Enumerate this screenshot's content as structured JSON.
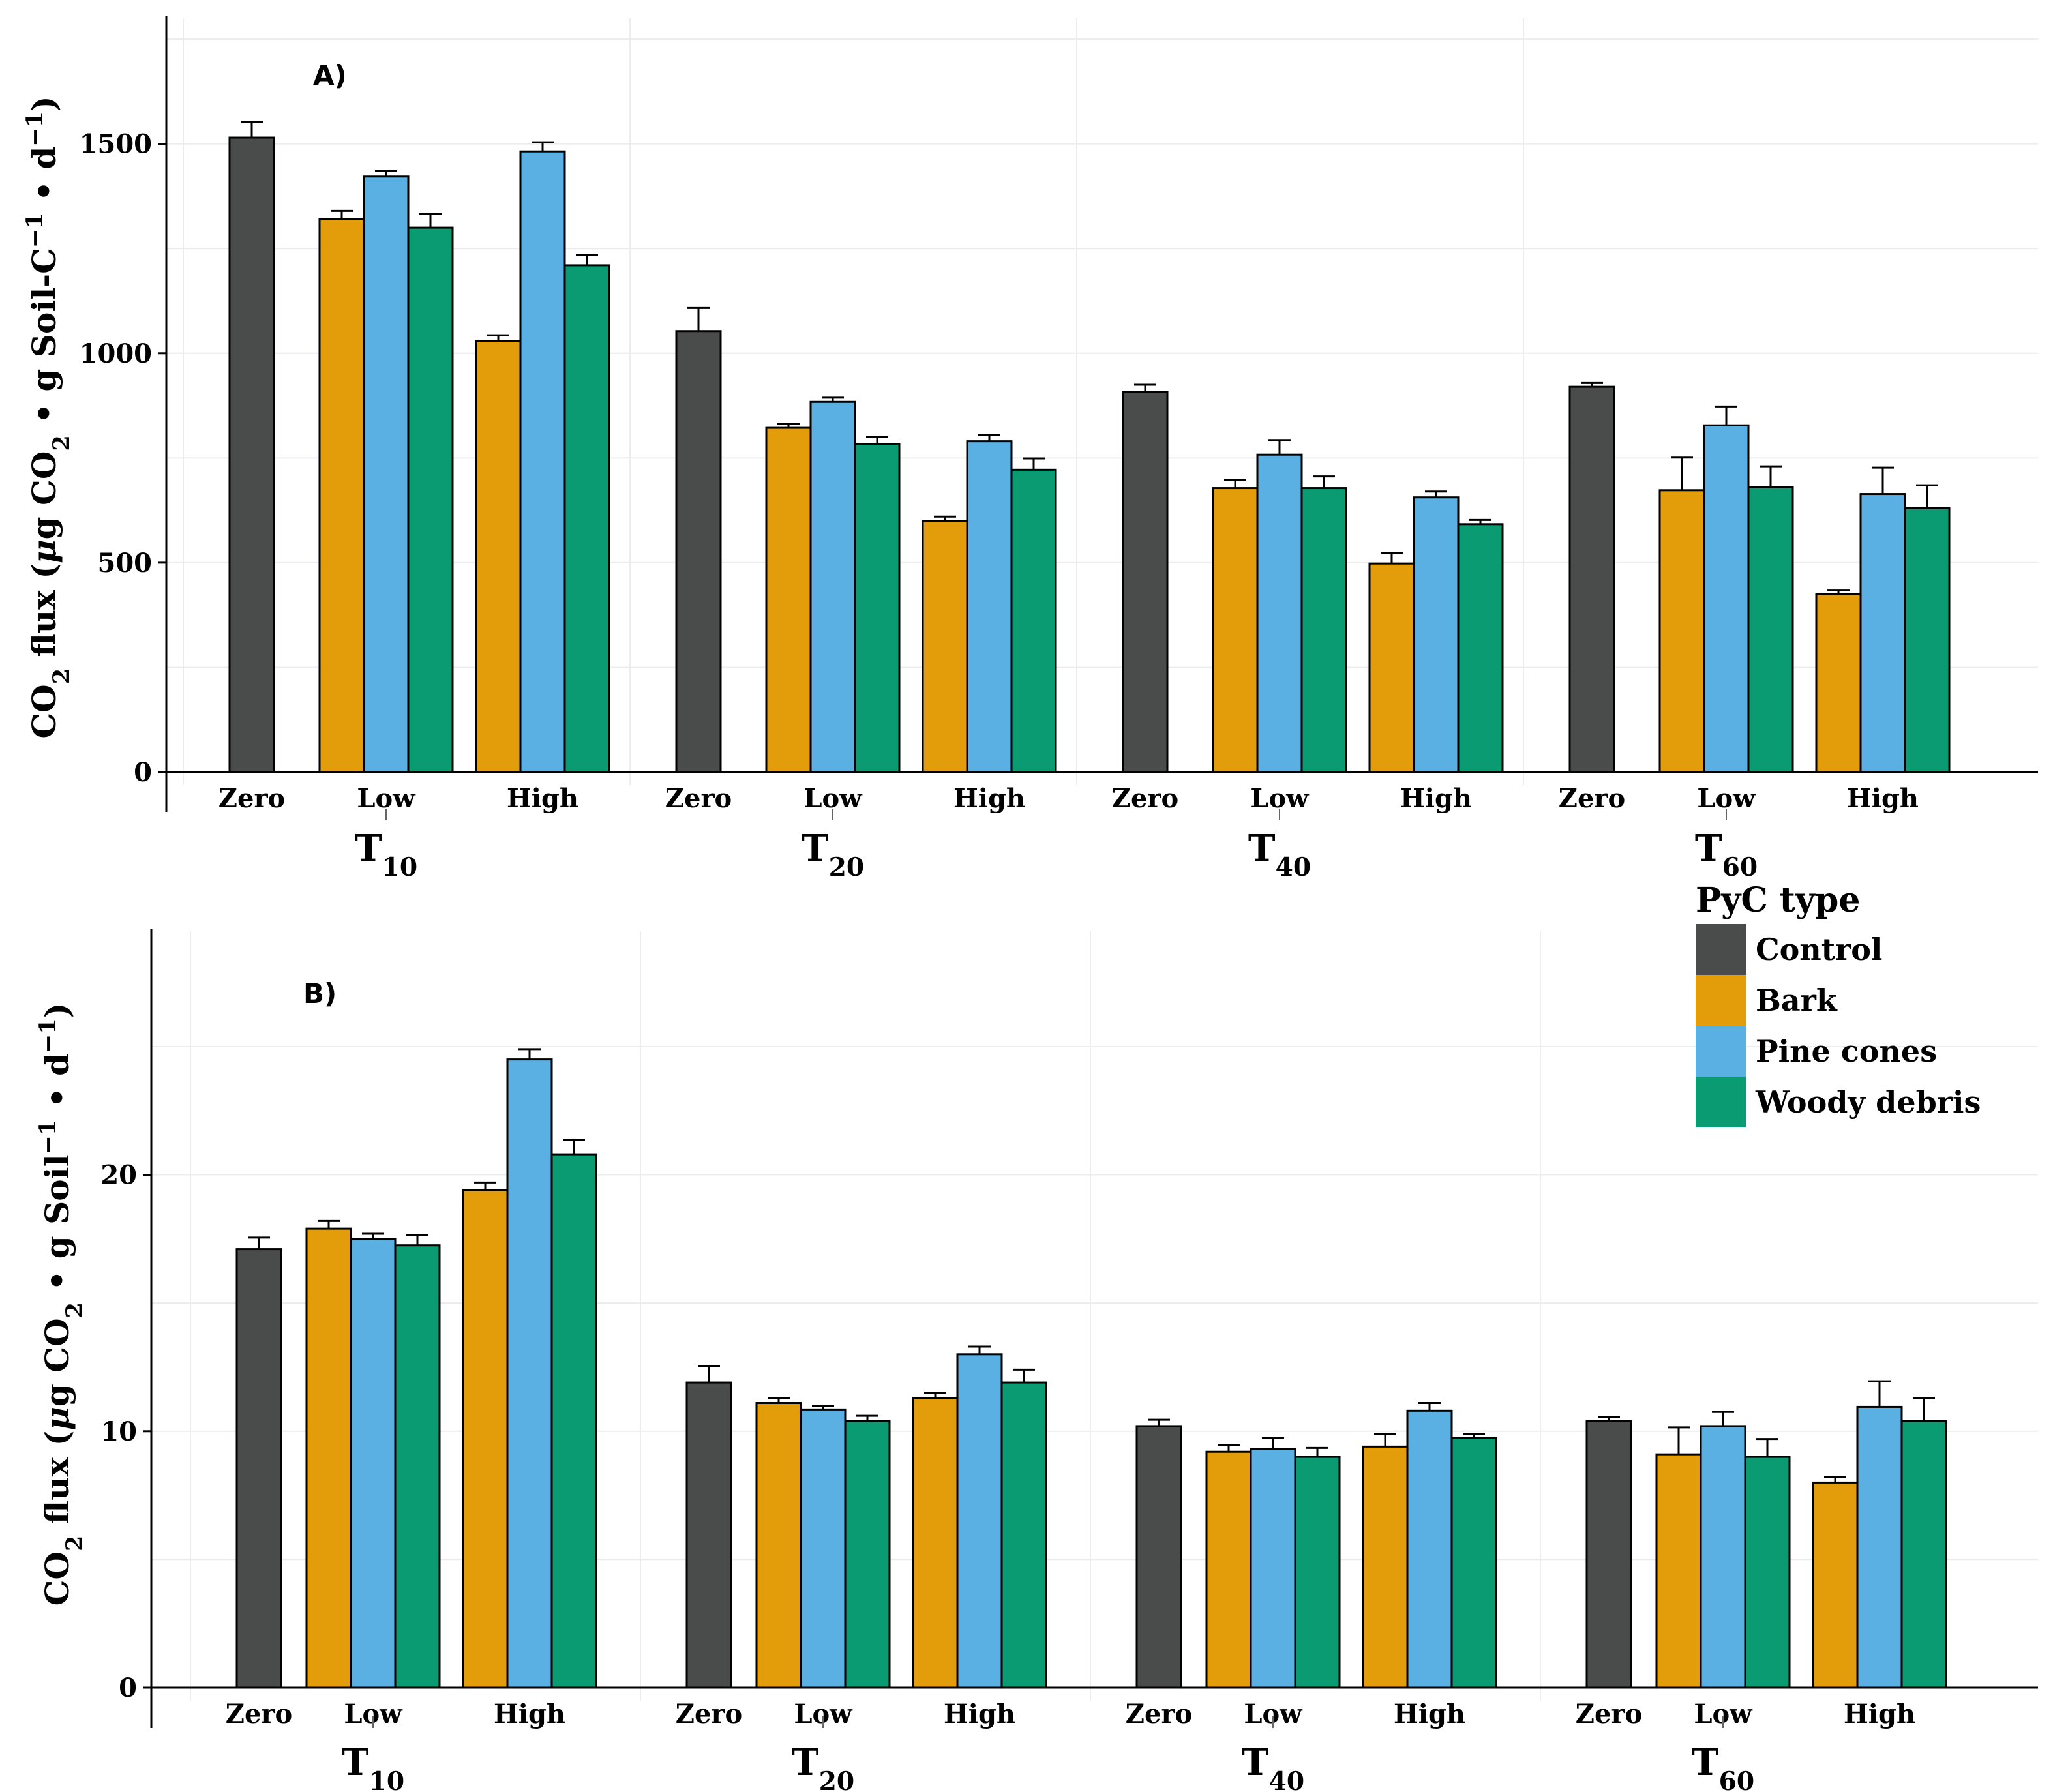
{
  "legend": {
    "title": "PyC type",
    "items": [
      {
        "name": "Control",
        "color": "#4a4c4b"
      },
      {
        "name": "Bark",
        "color": "#e39d0b"
      },
      {
        "name": "Pine cones",
        "color": "#5aafe3"
      },
      {
        "name": "Woody debris",
        "color": "#0a9b72"
      }
    ]
  },
  "chart_data": [
    {
      "type": "bar",
      "panel_label": "A)",
      "ylabel": {
        "prefix": "CO",
        "sub": "2",
        "mid": " flux (",
        "mu": "μ",
        "rest": "g CO",
        "sub2": "2",
        "tail": " • g Soil-C",
        "sup1": "−1",
        "tail2": " • d",
        "sup2": "−1",
        "close": ")"
      },
      "ylim": [
        0,
        1800
      ],
      "yticks": [
        0,
        500,
        1000,
        1500
      ],
      "ytick_labels": [
        "0",
        "500",
        "1000",
        "1500"
      ],
      "groups": [
        {
          "base": "T",
          "sub": "10"
        },
        {
          "base": "T",
          "sub": "20"
        },
        {
          "base": "T",
          "sub": "40"
        },
        {
          "base": "T",
          "sub": "60"
        }
      ],
      "levels": [
        "Zero",
        "Low",
        "High"
      ],
      "data": [
        {
          "zero": [
            1515,
            38
          ],
          "low": [
            [
              1320,
              20
            ],
            [
              1422,
              13
            ],
            [
              1300,
              32
            ]
          ],
          "high": [
            [
              1030,
              13
            ],
            [
              1482,
              22
            ],
            [
              1210,
              25
            ]
          ]
        },
        {
          "zero": [
            1053,
            55
          ],
          "low": [
            [
              822,
              10
            ],
            [
              884,
              10
            ],
            [
              784,
              17
            ]
          ],
          "high": [
            [
              600,
              10
            ],
            [
              790,
              15
            ],
            [
              722,
              27
            ]
          ]
        },
        {
          "zero": [
            907,
            18
          ],
          "low": [
            [
              678,
              20
            ],
            [
              758,
              35
            ],
            [
              678,
              28
            ]
          ],
          "high": [
            [
              498,
              25
            ],
            [
              656,
              14
            ],
            [
              592,
              10
            ]
          ]
        },
        {
          "zero": [
            920,
            9
          ],
          "low": [
            [
              673,
              78
            ],
            [
              828,
              45
            ],
            [
              680,
              50
            ]
          ],
          "high": [
            [
              425,
              10
            ],
            [
              664,
              63
            ],
            [
              630,
              55
            ]
          ]
        }
      ]
    },
    {
      "type": "bar",
      "panel_label": "B)",
      "ylabel": {
        "prefix": "CO",
        "sub": "2",
        "mid": " flux (",
        "mu": "μ",
        "rest": "g CO",
        "sub2": "2",
        "tail": " • g Soil",
        "sup1": "−1",
        "tail2": " • d",
        "sup2": "−1",
        "close": ")"
      },
      "ylim": [
        0,
        29.5
      ],
      "yticks": [
        0,
        10,
        20
      ],
      "ytick_labels": [
        "0",
        "10",
        "20"
      ],
      "groups": [
        {
          "base": "T",
          "sub": "10"
        },
        {
          "base": "T",
          "sub": "20"
        },
        {
          "base": "T",
          "sub": "40"
        },
        {
          "base": "T",
          "sub": "60"
        }
      ],
      "levels": [
        "Zero",
        "Low",
        "High"
      ],
      "data": [
        {
          "zero": [
            17.1,
            0.45
          ],
          "low": [
            [
              17.9,
              0.3
            ],
            [
              17.5,
              0.2
            ],
            [
              17.25,
              0.4
            ]
          ],
          "high": [
            [
              19.4,
              0.3
            ],
            [
              24.5,
              0.4
            ],
            [
              20.8,
              0.55
            ]
          ]
        },
        {
          "zero": [
            11.9,
            0.65
          ],
          "low": [
            [
              11.1,
              0.2
            ],
            [
              10.85,
              0.15
            ],
            [
              10.4,
              0.2
            ]
          ],
          "high": [
            [
              11.3,
              0.2
            ],
            [
              13.0,
              0.3
            ],
            [
              11.9,
              0.5
            ]
          ]
        },
        {
          "zero": [
            10.2,
            0.25
          ],
          "low": [
            [
              9.2,
              0.25
            ],
            [
              9.3,
              0.45
            ],
            [
              9.0,
              0.35
            ]
          ],
          "high": [
            [
              9.4,
              0.5
            ],
            [
              10.8,
              0.3
            ],
            [
              9.75,
              0.15
            ]
          ]
        },
        {
          "zero": [
            10.4,
            0.15
          ],
          "low": [
            [
              9.1,
              1.05
            ],
            [
              10.2,
              0.55
            ],
            [
              9.0,
              0.7
            ]
          ],
          "high": [
            [
              8.0,
              0.2
            ],
            [
              10.95,
              1.0
            ],
            [
              10.4,
              0.9
            ]
          ]
        }
      ]
    }
  ]
}
